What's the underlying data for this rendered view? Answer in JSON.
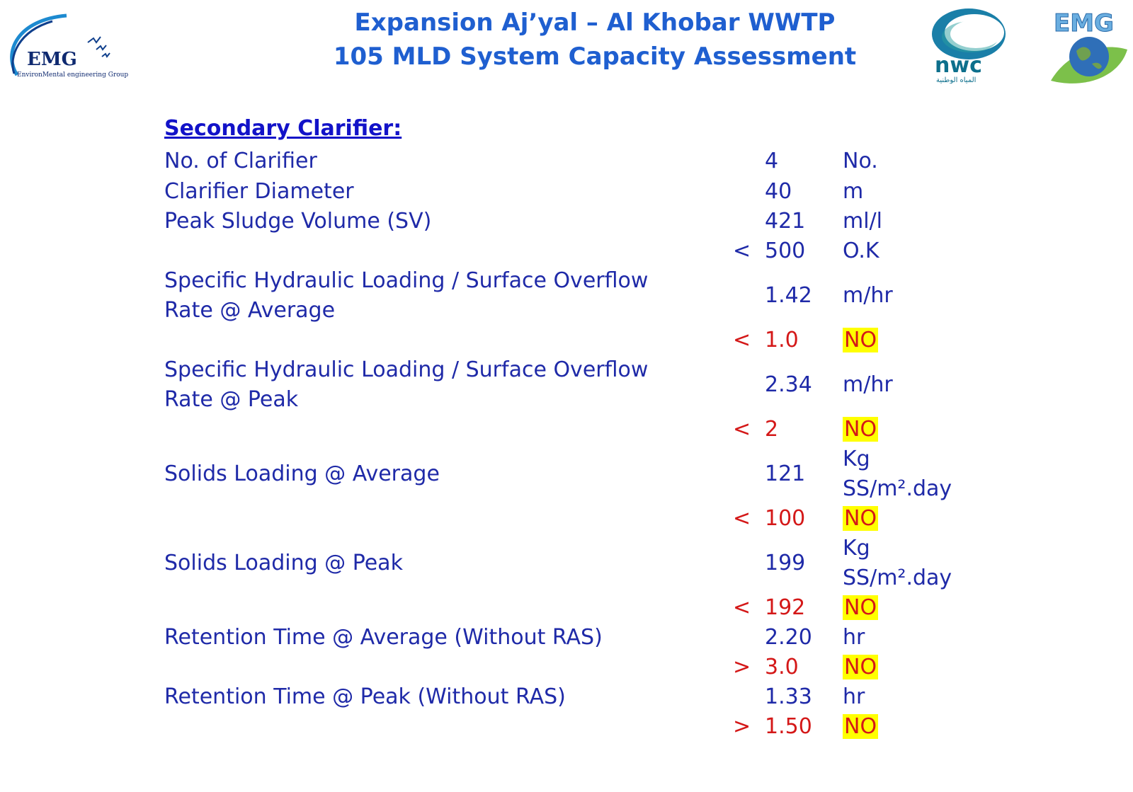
{
  "header": {
    "title_line1": "Expansion Aj’yal – Al Khobar WWTP",
    "title_line2": "105 MLD System Capacity Assessment"
  },
  "logos": {
    "left": {
      "text": "EMG",
      "subtitle": "EnvironMental engineering Group"
    },
    "nwc": {
      "text": "nwc",
      "arabic": "المياه الوطنية"
    },
    "right": {
      "text": "EMG"
    }
  },
  "section": {
    "heading": "Secondary Clarifier:"
  },
  "rows": {
    "r1": {
      "label": "No. of Clarifier",
      "value": "4",
      "unit": "No."
    },
    "r2": {
      "label": "Clarifier Diameter",
      "value": "40",
      "unit": "m"
    },
    "r3": {
      "label": "Peak  Sludge Volume (SV)",
      "value": "421",
      "unit": "ml/l"
    },
    "r3c": {
      "op": "<",
      "value": "500",
      "status": "O.K"
    },
    "r4": {
      "label_line1": "Specific Hydraulic Loading / Surface Overflow",
      "label_line2": "Rate @ Average",
      "value": "1.42",
      "unit": "m/hr"
    },
    "r4c": {
      "op": "<",
      "value": "1.0",
      "status": "NO"
    },
    "r5": {
      "label_line1": "Specific Hydraulic Loading / Surface Overflow",
      "label_line2": "Rate @ Peak",
      "value": "2.34",
      "unit": "m/hr"
    },
    "r5c": {
      "op": "<",
      "value": "2",
      "status": "NO"
    },
    "r6": {
      "label": "Solids Loading @ Average",
      "value": "121",
      "unit_line1": "Kg",
      "unit_line2": "SS/m².day"
    },
    "r6c": {
      "op": "<",
      "value": "100",
      "status": "NO"
    },
    "r7": {
      "label": "Solids Loading @ Peak",
      "value": "199",
      "unit_line1": "Kg",
      "unit_line2": "SS/m².day"
    },
    "r7c": {
      "op": "<",
      "value": "192",
      "status": "NO"
    },
    "r8": {
      "label": "Retention Time @ Average (Without RAS)",
      "value": "2.20",
      "unit": "hr"
    },
    "r8c": {
      "op": ">",
      "value": "3.0",
      "status": "NO"
    },
    "r9": {
      "label": "Retention Time @ Peak (Without RAS)",
      "value": "1.33",
      "unit": "hr"
    },
    "r9c": {
      "op": ">",
      "value": "1.50",
      "status": "NO"
    }
  },
  "colors": {
    "title": "#1f5fd0",
    "text": "#1f2aa8",
    "heading": "#1212c8",
    "fail": "#d41818",
    "highlight": "#ffff00"
  }
}
